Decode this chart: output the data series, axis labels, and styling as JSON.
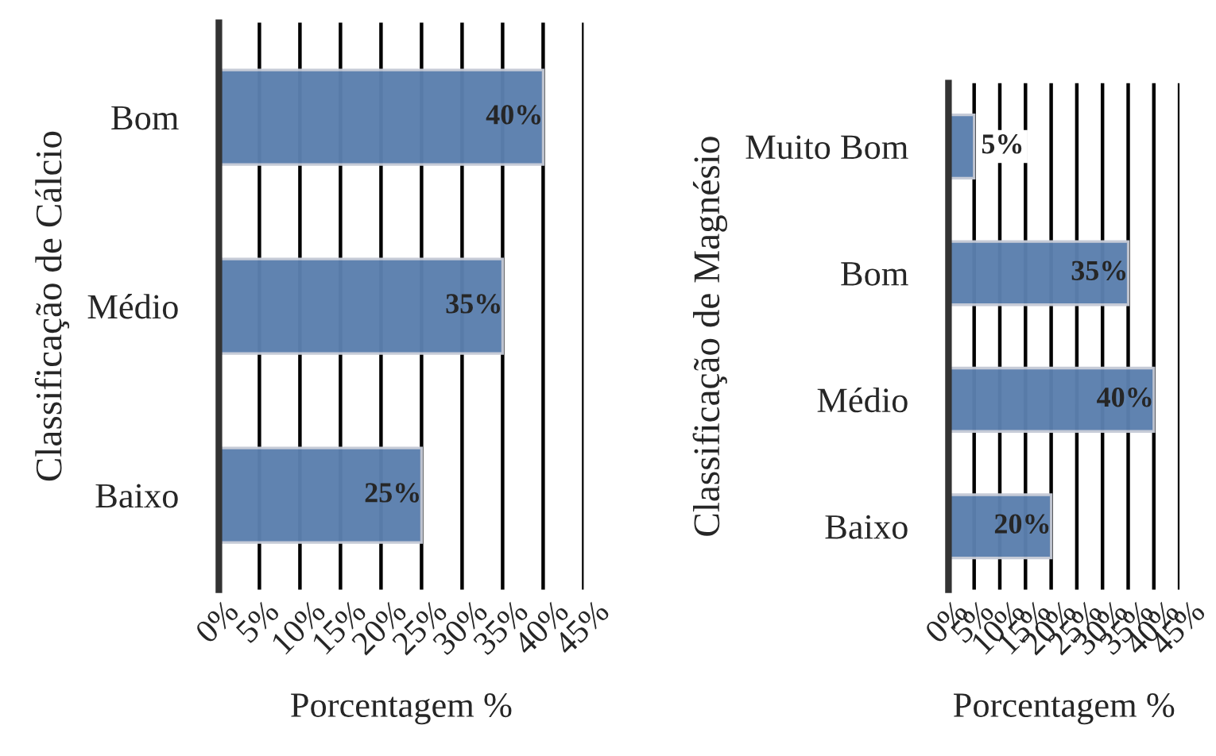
{
  "chart_data": [
    {
      "type": "bar",
      "orientation": "horizontal",
      "ylabel": "Classificação de Cálcio",
      "xlabel": "Porcentagem %",
      "categories": [
        "Bom",
        "Médio",
        "Baixo"
      ],
      "values": [
        40,
        35,
        25
      ],
      "color": "#5b7fae",
      "value_labels": [
        "40%",
        "35%",
        "25%"
      ],
      "xlim": [
        0,
        45
      ],
      "xticks": [
        {
          "value": 0,
          "label": "0%"
        },
        {
          "value": 5,
          "label": "5%"
        },
        {
          "value": 10,
          "label": "10%"
        },
        {
          "value": 15,
          "label": "15%"
        },
        {
          "value": 20,
          "label": "20%"
        },
        {
          "value": 25,
          "label": "25%"
        },
        {
          "value": 30,
          "label": "30%"
        },
        {
          "value": 35,
          "label": "35%"
        },
        {
          "value": 40,
          "label": "40%"
        },
        {
          "value": 45,
          "label": "45%"
        }
      ],
      "grid": "x"
    },
    {
      "type": "bar",
      "orientation": "horizontal",
      "ylabel": "Classificação de Magnésio",
      "xlabel": "Porcentagem %",
      "categories": [
        "Muito Bom",
        "Bom",
        "Médio",
        "Baixo"
      ],
      "values": [
        5,
        35,
        40,
        20
      ],
      "color": "#5b7fae",
      "value_labels": [
        "5%",
        "35%",
        "40%",
        "20%"
      ],
      "xlim": [
        0,
        45
      ],
      "xticks": [
        {
          "value": 0,
          "label": "0%"
        },
        {
          "value": 5,
          "label": "5%"
        },
        {
          "value": 10,
          "label": "10%"
        },
        {
          "value": 15,
          "label": "15%"
        },
        {
          "value": 20,
          "label": "20%"
        },
        {
          "value": 25,
          "label": "25%"
        },
        {
          "value": 30,
          "label": "30%"
        },
        {
          "value": 35,
          "label": "35%"
        },
        {
          "value": 40,
          "label": "40%"
        },
        {
          "value": 45,
          "label": "45%"
        }
      ],
      "grid": "x"
    }
  ]
}
